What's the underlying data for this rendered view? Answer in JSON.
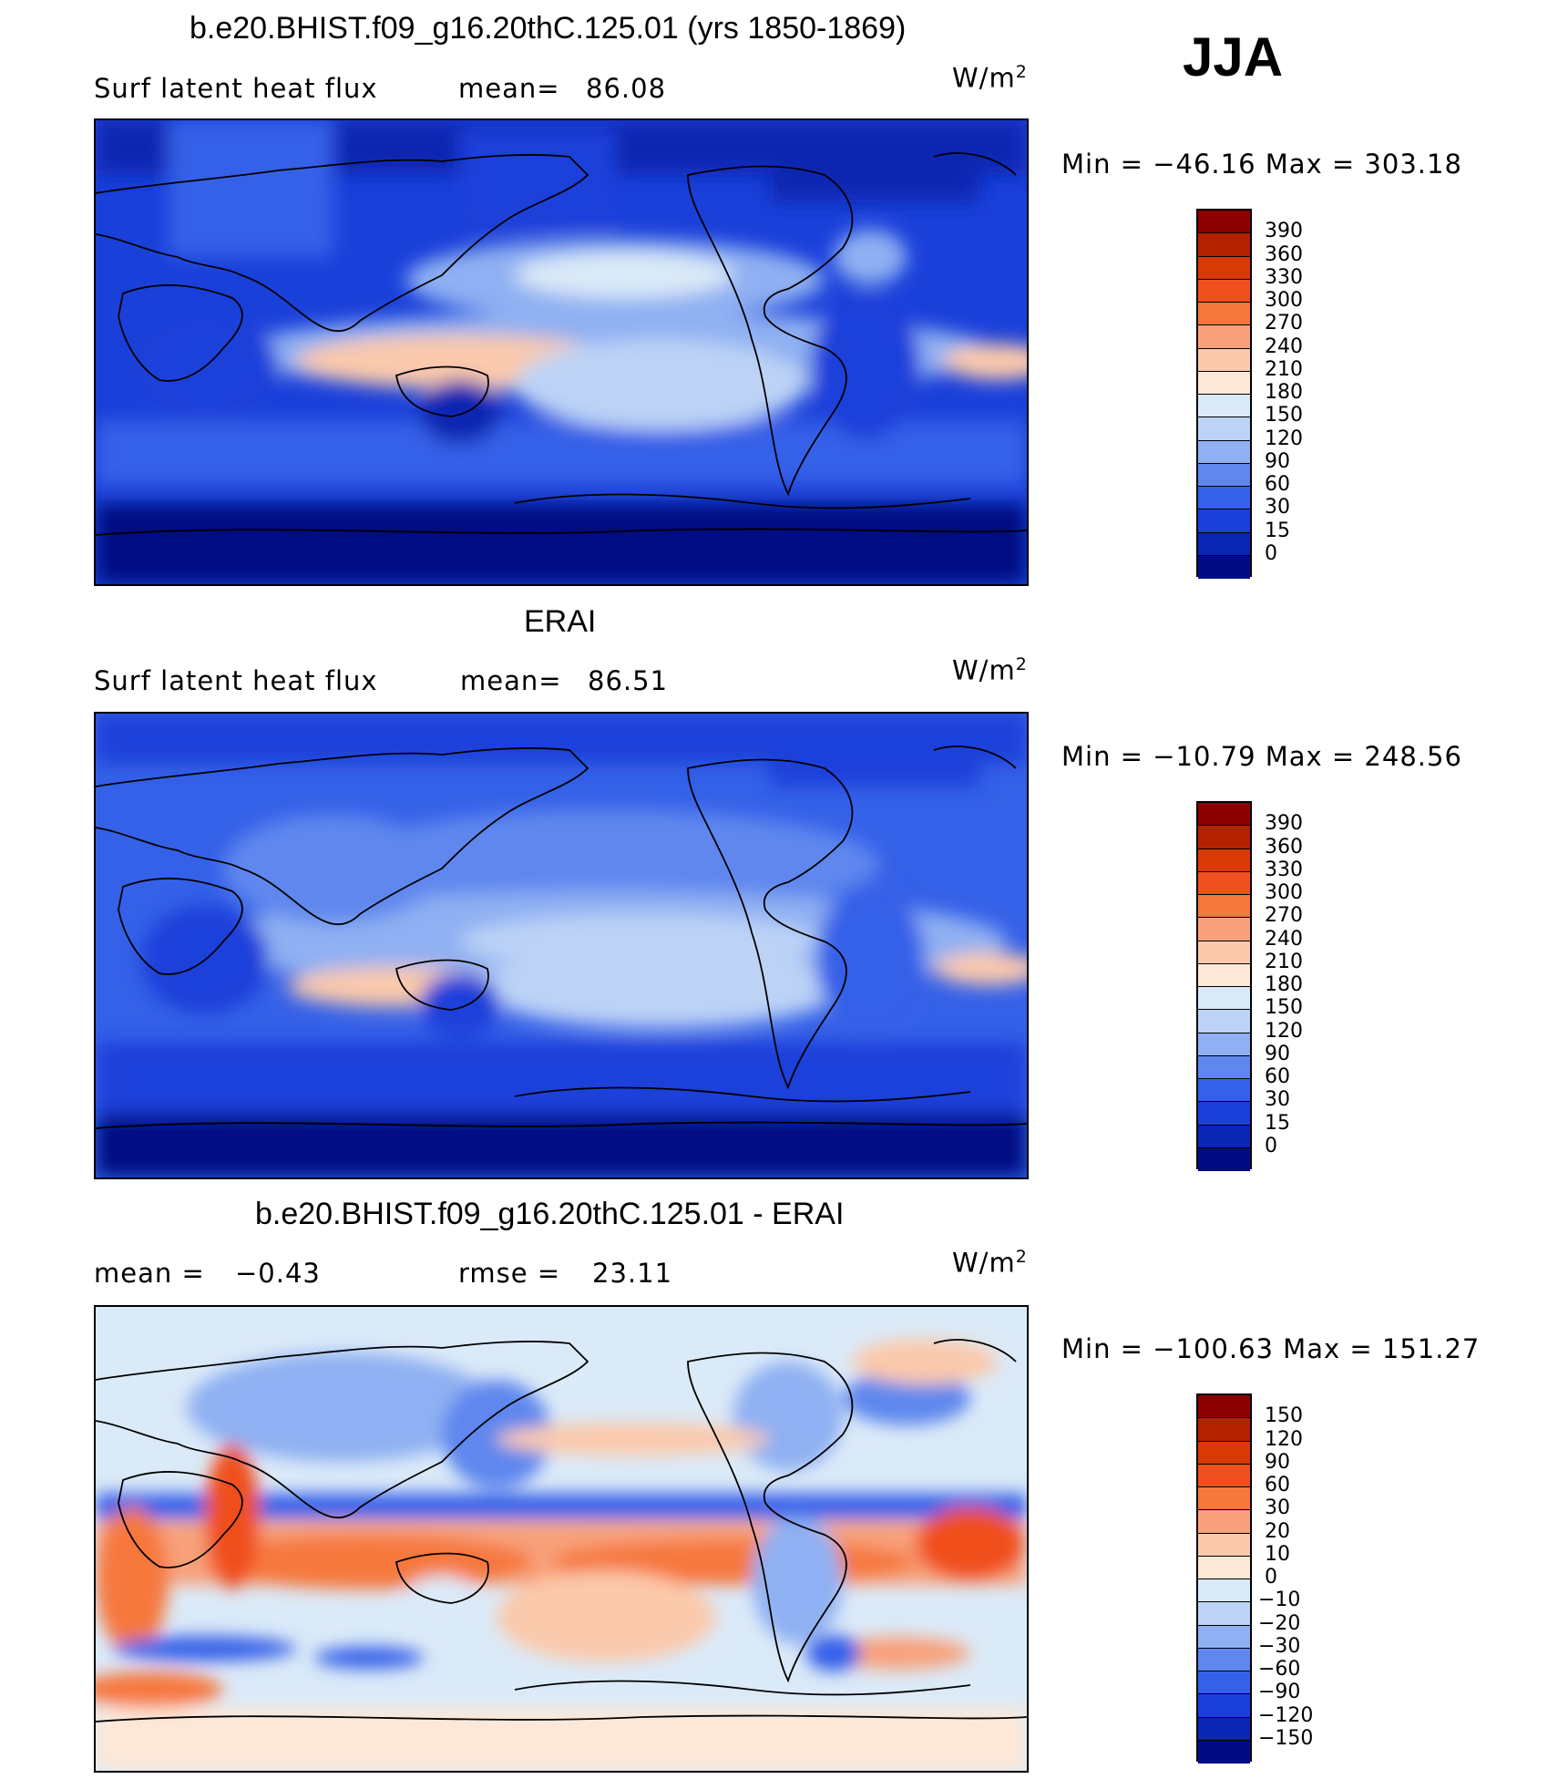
{
  "season": "JJA",
  "units": "W/m",
  "units_exp": "2",
  "panels": [
    {
      "title": "b.e20.BHIST.f09_g16.20thC.125.01 (yrs 1850-1869)",
      "left_label": "Surf  latent  heat  flux",
      "stat_label": "mean=",
      "stat_value": "86.08",
      "minmax": "Min  =  −46.16  Max  =  303.18",
      "colorbar_ticks": [
        "390",
        "360",
        "330",
        "300",
        "270",
        "240",
        "210",
        "180",
        "150",
        "120",
        "90",
        "60",
        "30",
        "15",
        "0"
      ],
      "colorbar_colors": [
        "#8b0000",
        "#b22200",
        "#d83a06",
        "#f0501f",
        "#f6783c",
        "#f8a17a",
        "#fbc9ab",
        "#fde8d8",
        "#dbeaf8",
        "#bcd3f6",
        "#8fb0f2",
        "#5f87ee",
        "#3561e8",
        "#1a40da",
        "#0a26b2",
        "#000c83"
      ]
    },
    {
      "title": "ERAI",
      "left_label": "Surf  latent  heat  flux",
      "stat_label": "mean=",
      "stat_value": "86.51",
      "minmax": "Min  =  −10.79  Max  =  248.56",
      "colorbar_ticks": [
        "390",
        "360",
        "330",
        "300",
        "270",
        "240",
        "210",
        "180",
        "150",
        "120",
        "90",
        "60",
        "30",
        "15",
        "0"
      ],
      "colorbar_colors": [
        "#8b0000",
        "#b22200",
        "#d83a06",
        "#f0501f",
        "#f6783c",
        "#f8a17a",
        "#fbc9ab",
        "#fde8d8",
        "#dbeaf8",
        "#bcd3f6",
        "#8fb0f2",
        "#5f87ee",
        "#3561e8",
        "#1a40da",
        "#0a26b2",
        "#000c83"
      ]
    },
    {
      "title": "b.e20.BHIST.f09_g16.20thC.125.01 - ERAI",
      "left_label": "mean  =",
      "left_value": "−0.43",
      "stat_label": "rmse  =",
      "stat_value": "23.11",
      "minmax": "Min  =  −100.63  Max  =  151.27",
      "colorbar_ticks": [
        "150",
        "120",
        "90",
        "60",
        "30",
        "20",
        "10",
        "0",
        "−10",
        "−20",
        "−30",
        "−60",
        "−90",
        "−120",
        "−150"
      ],
      "colorbar_colors": [
        "#8b0000",
        "#b22200",
        "#d83a06",
        "#f0501f",
        "#f6783c",
        "#f8a17a",
        "#fbc9ab",
        "#fde8d8",
        "#dbeaf8",
        "#bcd3f6",
        "#8fb0f2",
        "#5f87ee",
        "#3561e8",
        "#1a40da",
        "#0a26b2",
        "#000c83"
      ]
    }
  ],
  "chart_data": [
    {
      "type": "heatmap",
      "title": "b.e20.BHIST.f09_g16.20thC.125.01 (yrs 1850-1869)",
      "subtitle": "Surf latent heat flux",
      "units": "W/m2",
      "mean": 86.08,
      "min": -46.16,
      "max": 303.18,
      "contour_levels": [
        0,
        15,
        30,
        60,
        90,
        120,
        150,
        180,
        210,
        240,
        270,
        300,
        330,
        360,
        390
      ]
    },
    {
      "type": "heatmap",
      "title": "ERAI",
      "subtitle": "Surf latent heat flux",
      "units": "W/m2",
      "mean": 86.51,
      "min": -10.79,
      "max": 248.56,
      "contour_levels": [
        0,
        15,
        30,
        60,
        90,
        120,
        150,
        180,
        210,
        240,
        270,
        300,
        330,
        360,
        390
      ]
    },
    {
      "type": "heatmap",
      "title": "b.e20.BHIST.f09_g16.20thC.125.01 - ERAI",
      "units": "W/m2",
      "mean": -0.43,
      "rmse": 23.11,
      "min": -100.63,
      "max": 151.27,
      "contour_levels": [
        -150,
        -120,
        -90,
        -60,
        -30,
        -20,
        -10,
        0,
        10,
        20,
        30,
        60,
        90,
        120,
        150
      ]
    }
  ]
}
